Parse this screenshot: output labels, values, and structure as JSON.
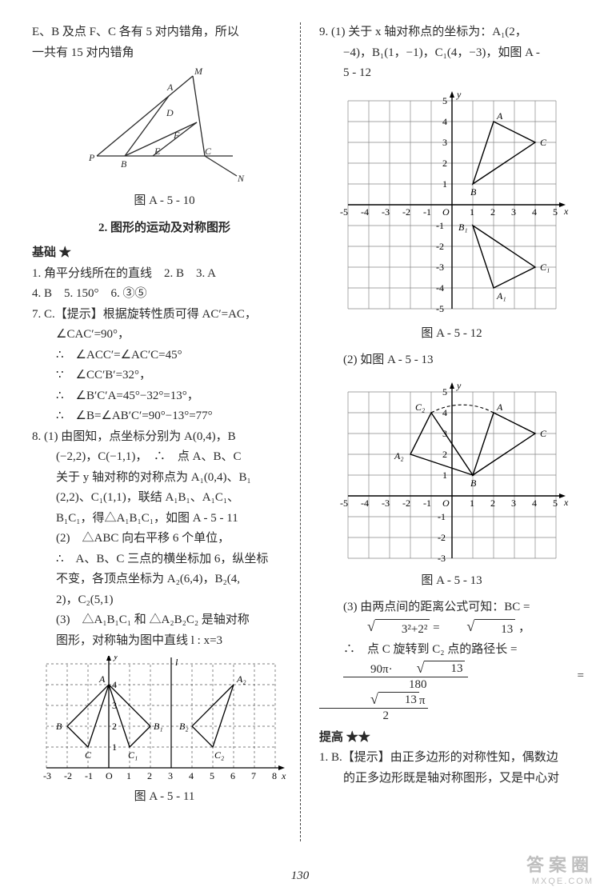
{
  "page_number": "130",
  "col_left": {
    "intro_line1": "E、B 及点 F、C 各有 5 对内错角，所以",
    "intro_line2": "一共有 15 对内错角",
    "fig_a5_10": {
      "caption": "图 A - 5 - 10",
      "labels": [
        "A",
        "B",
        "C",
        "D",
        "E",
        "F",
        "M",
        "N",
        "P"
      ],
      "stroke": "#2a2a2a"
    },
    "section_head": "2. 图形的运动及对称图形",
    "level": "基础 ★",
    "q1": "1. 角平分线所在的直线　2. B　3. A",
    "q4": "4. B　5. 150°　6. ③⑤",
    "q7_head": "7. C.【提示】根据旋转性质可得 AC′=AC，",
    "q7_l2": "∠CAC′=90°，",
    "q7_l3": "∴　∠ACC′=∠AC′C=45°",
    "q7_l4": "∵　∠CC′B′=32°，",
    "q7_l5": "∴　∠B′C′A=45°−32°=13°，",
    "q7_l6": "∴　∠B=∠AB′C′=90°−13°=77°",
    "q8_l1": "8. (1) 由图知，点坐标分别为 A(0,4)，B",
    "q8_l2": "(−2,2)，C(−1,1)，　∴　点 A、B、C",
    "q8_l3": "关于 y 轴对称的对称点为 A₁(0,4)、B₁",
    "q8_l4": "(2,2)、C₁(1,1)，联结 A₁B₁、A₁C₁、",
    "q8_l5": "B₁C₁，得△A₁B₁C₁，如图 A - 5 - 11",
    "q8_l6": "(2)　△ABC 向右平移 6 个单位，",
    "q8_l7": "∴　A、B、C 三点的横坐标加 6，纵坐标",
    "q8_l8": "不变，各顶点坐标为 A₂(6,4)，B₂(4,",
    "q8_l9": "2)，C₂(5,1)",
    "q8_l10": "(3)　△A₁B₁C₁ 和 △A₂B₂C₂ 是轴对称",
    "q8_l11": "图形，对称轴为图中直线 l : x=3",
    "fig_a5_11": {
      "caption": "图 A - 5 - 11",
      "x_range": [
        -3,
        8
      ],
      "y_range": [
        0,
        5
      ],
      "grid_color": "#555",
      "axis_color": "#000",
      "A": [
        0,
        4
      ],
      "B": [
        -2,
        2
      ],
      "C": [
        -1,
        1
      ],
      "A1": [
        0,
        4
      ],
      "B1": [
        2,
        2
      ],
      "C1": [
        1,
        1
      ],
      "A2": [
        6,
        4
      ],
      "B2": [
        4,
        2
      ],
      "C2": [
        5,
        1
      ],
      "l_x": 3,
      "x_ticks": [
        "-3",
        "-2",
        "-1",
        "O",
        "1",
        "2",
        "3",
        "4",
        "5",
        "6",
        "7",
        "8"
      ]
    }
  },
  "col_right": {
    "q9_l1": "9. (1) 关于 x 轴对称点的坐标为：A₁(2，",
    "q9_l2": "−4)，B₁(1，−1)，C₁(4，−3)，如图 A -",
    "q9_l3": "5 - 12",
    "fig_a5_12": {
      "caption": "图 A - 5 - 12",
      "range": [
        -5,
        5
      ],
      "A": [
        2,
        4
      ],
      "B": [
        1,
        1
      ],
      "C": [
        4,
        3
      ],
      "A1": [
        2,
        -4
      ],
      "B1": [
        1,
        -1
      ],
      "C1": [
        4,
        -3
      ],
      "grid_color": "#888",
      "axis_color": "#000"
    },
    "q9_l4": "(2) 如图 A - 5 - 13",
    "fig_a5_13": {
      "caption": "图 A - 5 - 13",
      "xrange": [
        -5,
        5
      ],
      "yrange": [
        -3,
        5
      ],
      "A": [
        2,
        4
      ],
      "B": [
        1,
        1
      ],
      "C": [
        4,
        3
      ],
      "A2": [
        -2,
        2
      ],
      "C2": [
        -1,
        4
      ],
      "arc_from": [
        2,
        4
      ],
      "arc_to": [
        -1,
        4
      ],
      "grid_color": "#888",
      "axis_color": "#000"
    },
    "q9_l5": "(3) 由两点间的距离公式可知：BC =",
    "q9_sqrt_inner": "3²+2²",
    "q9_sqrt_res": "13",
    "q9_l6": "∴　点 C 旋转到 C₂ 点的路径长 =",
    "frac_num": "90π·",
    "frac_num_sqrt": "13",
    "frac_den": "180",
    "rhs_num_sqrt": "13",
    "rhs_num_pi": "π",
    "rhs_den": "2",
    "level2": "提高 ★★",
    "p1_l1": "1. B.【提示】由正多边形的对称性知，偶数边",
    "p1_l2": "的正多边形既是轴对称图形，又是中心对"
  },
  "watermark": {
    "line1": "答案圈",
    "line2": "MXQE.COM"
  }
}
